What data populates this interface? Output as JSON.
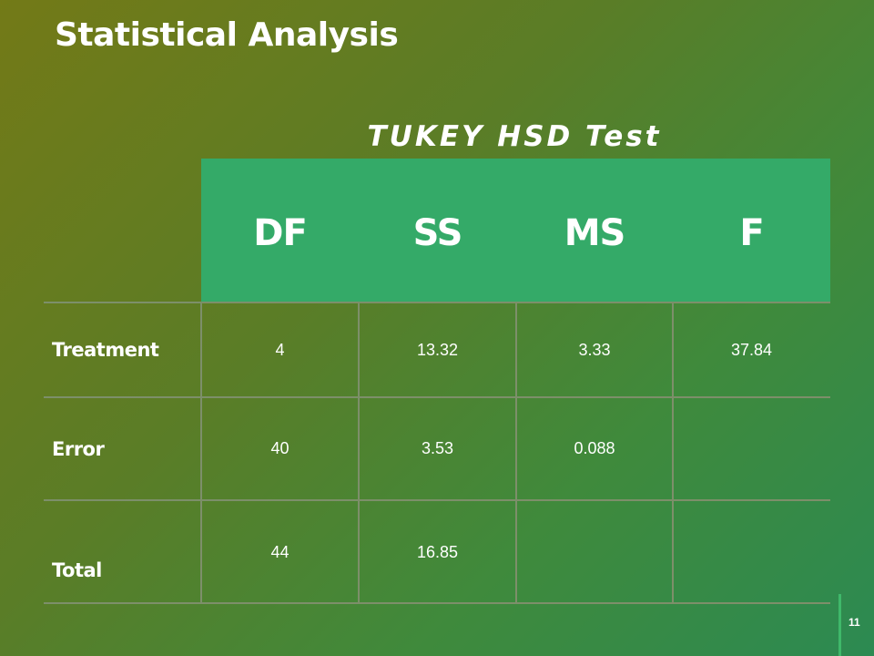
{
  "slide": {
    "title": "Statistical Analysis",
    "subtitle": "TUKEY HSD Test",
    "page_number": "11"
  },
  "table": {
    "headers": [
      "DF",
      "SS",
      "MS",
      "F"
    ],
    "rows": [
      {
        "label": "Treatment",
        "values": [
          "4",
          "13.32",
          "3.33",
          "37.84"
        ]
      },
      {
        "label": "Error",
        "values": [
          "40",
          "3.53",
          "0.088",
          ""
        ]
      },
      {
        "label": "Total",
        "values": [
          "44",
          "16.85",
          "",
          ""
        ]
      }
    ]
  },
  "colors": {
    "header_fill": "#34aa68",
    "background_start": "#737a17",
    "background_end": "#2c8a52"
  }
}
